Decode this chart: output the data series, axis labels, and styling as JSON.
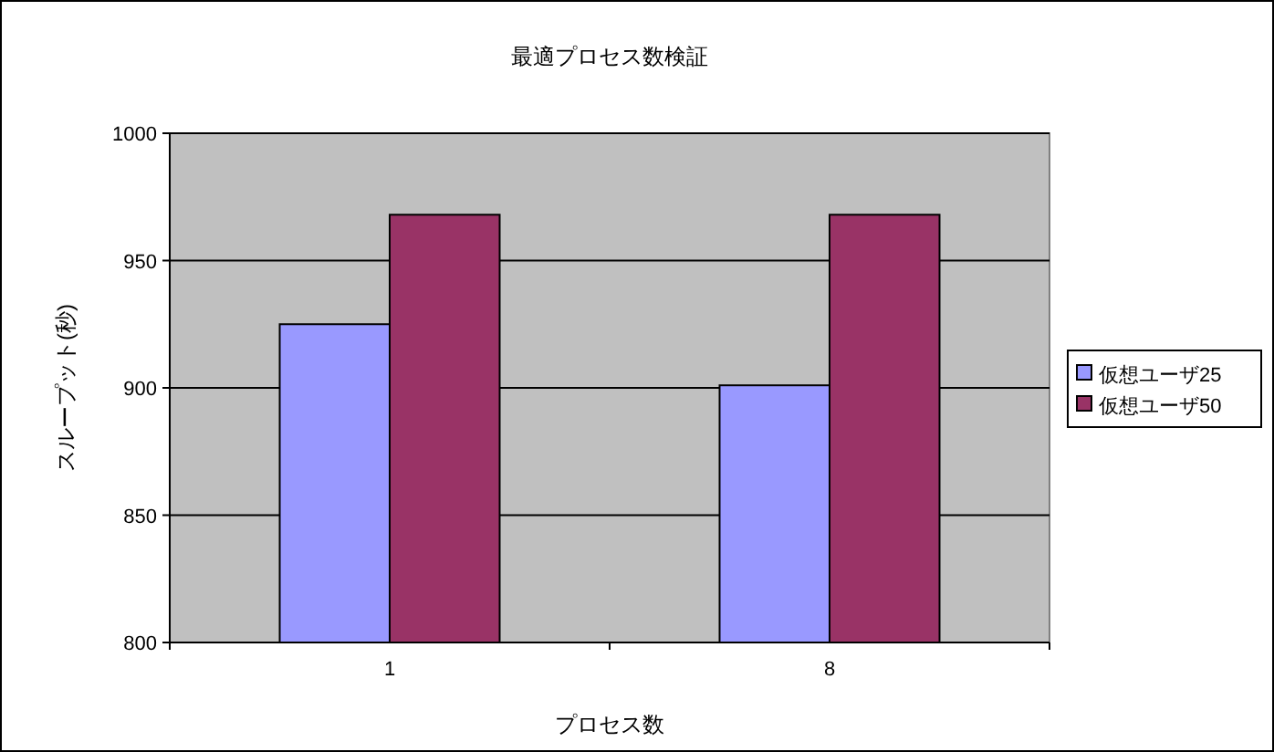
{
  "chart_data": {
    "type": "bar",
    "title": "最適プロセス数検証",
    "xlabel": "プロセス数",
    "ylabel": "スループット(秒)",
    "categories": [
      "1",
      "8"
    ],
    "series": [
      {
        "name": "仮想ユーザ25",
        "color": "#9999ff",
        "values": [
          925,
          901
        ]
      },
      {
        "name": "仮想ユーザ50",
        "color": "#993366",
        "values": [
          968,
          968
        ]
      }
    ],
    "ylim": [
      800,
      1000
    ],
    "yticks": [
      800,
      850,
      900,
      950,
      1000
    ],
    "grid": "y",
    "legend": "right"
  }
}
